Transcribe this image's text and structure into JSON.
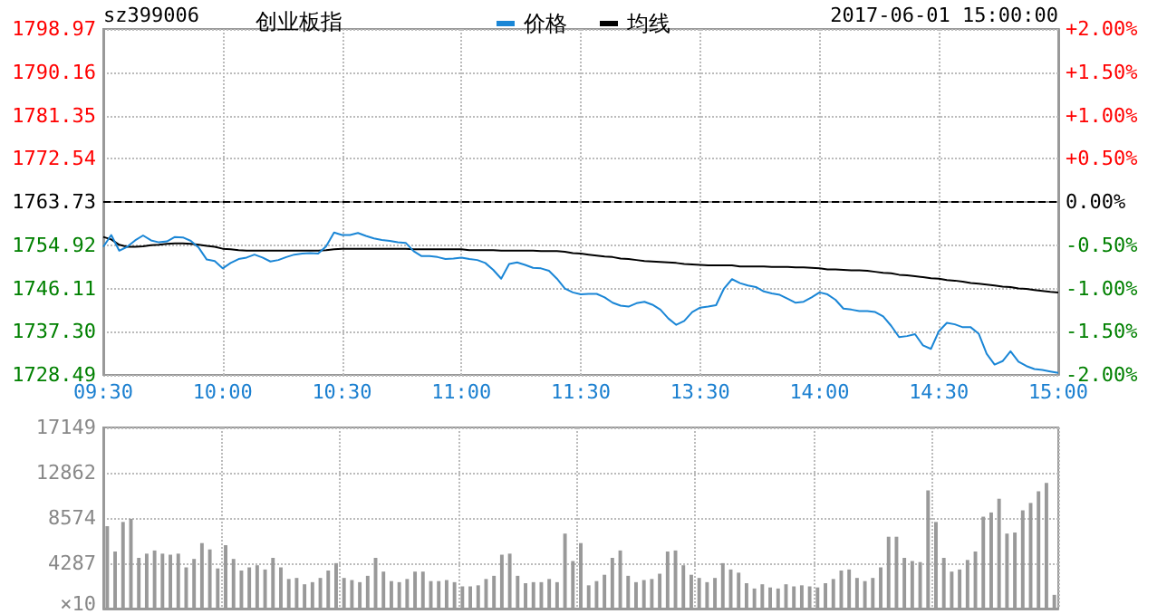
{
  "chart_data": [
    {
      "type": "line",
      "title": "创业板指",
      "annotations": [
        "sz399006",
        "2017-06-01 15:00:00"
      ],
      "categories": [
        "09:30",
        null,
        null,
        null,
        null,
        null,
        null,
        null,
        null,
        null,
        null,
        null,
        null,
        null,
        null,
        "10:00",
        null,
        null,
        null,
        null,
        null,
        null,
        null,
        null,
        null,
        null,
        null,
        null,
        null,
        null,
        "10:30",
        null,
        null,
        null,
        null,
        null,
        null,
        null,
        null,
        null,
        null,
        null,
        null,
        null,
        null,
        "11:00",
        null,
        null,
        null,
        null,
        null,
        null,
        null,
        null,
        null,
        null,
        null,
        null,
        null,
        null,
        "11:30",
        null,
        null,
        null,
        null,
        null,
        null,
        null,
        null,
        null,
        null,
        null,
        null,
        null,
        null,
        "13:30",
        null,
        null,
        null,
        null,
        null,
        null,
        null,
        null,
        null,
        null,
        null,
        null,
        null,
        null,
        "14:00",
        null,
        null,
        null,
        null,
        null,
        null,
        null,
        null,
        null,
        null,
        null,
        null,
        null,
        null,
        "14:30",
        null,
        null,
        null,
        null,
        null,
        null,
        null,
        null,
        null,
        null,
        null,
        null,
        null,
        null,
        "15:00"
      ],
      "series": [
        {
          "name": "价格",
          "color": "#1a86d6",
          "values": [
            1754.6,
            1757.0,
            1753.8,
            1754.6,
            1755.9,
            1756.9,
            1755.9,
            1755.5,
            1755.7,
            1756.6,
            1756.5,
            1755.8,
            1754.4,
            1752.0,
            1751.7,
            1750.2,
            1751.3,
            1752.1,
            1752.4,
            1753.0,
            1752.4,
            1751.6,
            1751.9,
            1752.5,
            1753.0,
            1753.2,
            1753.3,
            1753.2,
            1754.7,
            1757.5,
            1757.0,
            1757.0,
            1757.4,
            1756.8,
            1756.3,
            1756.0,
            1755.8,
            1755.5,
            1755.4,
            1753.7,
            1752.7,
            1752.7,
            1752.5,
            1752.1,
            1752.2,
            1752.4,
            1752.1,
            1751.9,
            1751.3,
            1749.9,
            1748.1,
            1751.1,
            1751.4,
            1750.9,
            1750.3,
            1750.2,
            1749.7,
            1748.1,
            1746.1,
            1745.3,
            1744.9,
            1745.0,
            1745.0,
            1744.3,
            1743.2,
            1742.6,
            1742.4,
            1743.1,
            1743.4,
            1742.8,
            1741.8,
            1740.0,
            1738.7,
            1739.5,
            1741.3,
            1742.2,
            1742.4,
            1742.7,
            1746.1,
            1748.0,
            1747.2,
            1746.7,
            1746.4,
            1745.5,
            1745.1,
            1744.8,
            1744.0,
            1743.2,
            1743.4,
            1744.3,
            1745.3,
            1744.9,
            1743.8,
            1742.0,
            1741.8,
            1741.5,
            1741.5,
            1741.3,
            1740.4,
            1738.5,
            1736.2,
            1736.4,
            1736.8,
            1734.5,
            1733.8,
            1737.4,
            1739.1,
            1738.8,
            1738.2,
            1738.2,
            1736.9,
            1732.8,
            1730.6,
            1731.3,
            1733.3,
            1731.2,
            1730.3,
            1729.7,
            1729.5,
            1729.2,
            1728.9
          ]
        },
        {
          "name": "均线",
          "color": "#000000",
          "values": [
            1756.6,
            1756.1,
            1755.0,
            1754.6,
            1754.6,
            1754.7,
            1754.9,
            1755.0,
            1755.2,
            1755.3,
            1755.3,
            1755.2,
            1755.0,
            1754.8,
            1754.6,
            1754.2,
            1754.1,
            1753.9,
            1753.8,
            1753.8,
            1753.8,
            1753.8,
            1753.8,
            1753.8,
            1753.8,
            1753.8,
            1753.8,
            1753.8,
            1753.9,
            1754.1,
            1754.2,
            1754.2,
            1754.2,
            1754.2,
            1754.2,
            1754.2,
            1754.2,
            1754.2,
            1754.2,
            1754.1,
            1754.1,
            1754.1,
            1754.1,
            1754.1,
            1754.1,
            1754.1,
            1753.9,
            1753.9,
            1753.9,
            1753.9,
            1753.8,
            1753.8,
            1753.8,
            1753.8,
            1753.8,
            1753.7,
            1753.7,
            1753.7,
            1753.6,
            1753.3,
            1753.2,
            1753.0,
            1752.8,
            1752.6,
            1752.5,
            1752.2,
            1752.1,
            1751.9,
            1751.7,
            1751.6,
            1751.5,
            1751.4,
            1751.3,
            1751.1,
            1751.0,
            1750.9,
            1750.8,
            1750.8,
            1750.8,
            1750.8,
            1750.6,
            1750.6,
            1750.6,
            1750.6,
            1750.5,
            1750.5,
            1750.5,
            1750.4,
            1750.4,
            1750.3,
            1750.2,
            1750.0,
            1750.0,
            1749.9,
            1749.8,
            1749.8,
            1749.7,
            1749.5,
            1749.3,
            1749.2,
            1748.9,
            1748.8,
            1748.6,
            1748.4,
            1748.2,
            1748.1,
            1747.8,
            1747.7,
            1747.5,
            1747.2,
            1747.1,
            1746.9,
            1746.7,
            1746.5,
            1746.4,
            1746.1,
            1746.0,
            1745.8,
            1745.6,
            1745.4,
            1745.3
          ]
        }
      ],
      "ylim": [
        1728.49,
        1798.97
      ],
      "yticks": [
        1728.49,
        {
          "value": 1737.3,
          "label": "1737.30"
        },
        1746.11,
        1754.92,
        1763.73,
        1772.54,
        1781.35,
        1790.16,
        1798.97
      ],
      "y2lim": [
        -2,
        2
      ],
      "y2ticks": [
        {
          "value": -2,
          "label": "-2.00%"
        },
        {
          "value": -1.5,
          "label": "-1.50%"
        },
        {
          "value": -1,
          "label": "-1.00%"
        },
        {
          "value": -0.5,
          "label": "-0.50%"
        },
        {
          "value": 0,
          "label": "0.00%"
        },
        {
          "value": 0.5,
          "label": "+0.50%"
        },
        {
          "value": 1,
          "label": "+1.00%"
        },
        {
          "value": 1.5,
          "label": "+1.50%"
        },
        {
          "value": 2,
          "label": "+2.00%"
        }
      ],
      "ref_lines": [
        {
          "axis": "y",
          "value": 1763.73,
          "color": "#000000",
          "line_style": "dashed"
        }
      ],
      "grid": true,
      "legend": "top",
      "marker": "none",
      "line_style": "solid"
    },
    {
      "type": "bar",
      "categories": [
        null,
        null,
        null,
        null,
        null,
        null,
        null,
        null,
        null,
        null,
        null,
        null,
        null,
        null,
        null,
        null,
        null,
        null,
        null,
        null,
        null,
        null,
        null,
        null,
        null,
        null,
        null,
        null,
        null,
        null,
        null,
        null,
        null,
        null,
        null,
        null,
        null,
        null,
        null,
        null,
        null,
        null,
        null,
        null,
        null,
        null,
        null,
        null,
        null,
        null,
        null,
        null,
        null,
        null,
        null,
        null,
        null,
        null,
        null,
        null,
        null,
        null,
        null,
        null,
        null,
        null,
        null,
        null,
        null,
        null,
        null,
        null,
        null,
        null,
        null,
        null,
        null,
        null,
        null,
        null,
        null,
        null,
        null,
        null,
        null,
        null,
        null,
        null,
        null,
        null,
        null,
        null,
        null,
        null,
        null,
        null,
        null,
        null,
        null,
        null,
        null,
        null,
        null,
        null,
        null,
        null,
        null,
        null,
        null,
        null,
        null,
        null,
        null,
        null,
        null,
        null,
        null,
        null,
        null,
        null,
        null
      ],
      "values": [
        7800,
        5400,
        8200,
        8500,
        4800,
        5200,
        5500,
        5200,
        5100,
        5200,
        3900,
        4700,
        6200,
        5600,
        3800,
        6000,
        4700,
        3600,
        3900,
        4100,
        3700,
        4800,
        3900,
        2800,
        2900,
        2300,
        2500,
        2900,
        3600,
        4300,
        2900,
        2700,
        2500,
        3100,
        4800,
        3500,
        2600,
        2500,
        2800,
        3500,
        3500,
        2600,
        2600,
        2700,
        2500,
        2100,
        2100,
        2200,
        2800,
        3100,
        5100,
        5200,
        3100,
        2400,
        2500,
        2500,
        2800,
        2500,
        7100,
        4500,
        6200,
        2200,
        2600,
        3200,
        4800,
        5500,
        3100,
        2500,
        2700,
        2800,
        3300,
        5400,
        5500,
        4100,
        3200,
        2900,
        2500,
        2900,
        4300,
        3700,
        3400,
        2400,
        1900,
        2300,
        2000,
        1900,
        2300,
        2100,
        2200,
        2100,
        2000,
        2400,
        2800,
        3600,
        3700,
        2900,
        2600,
        2900,
        3900,
        6800,
        6800,
        4800,
        4500,
        4400,
        11200,
        8200,
        4800,
        3500,
        3700,
        4600,
        5400,
        8700,
        9100,
        10400,
        7100,
        7200,
        9300,
        10000,
        11100,
        11900,
        1300
      ],
      "color": "#999999",
      "ylim": [
        0,
        17149
      ],
      "yticks": [
        {
          "value": 0,
          "label": null
        },
        4287,
        8574,
        12862,
        17149
      ],
      "ylabel": "×10",
      "grid": true,
      "tick_labels": "y"
    }
  ]
}
